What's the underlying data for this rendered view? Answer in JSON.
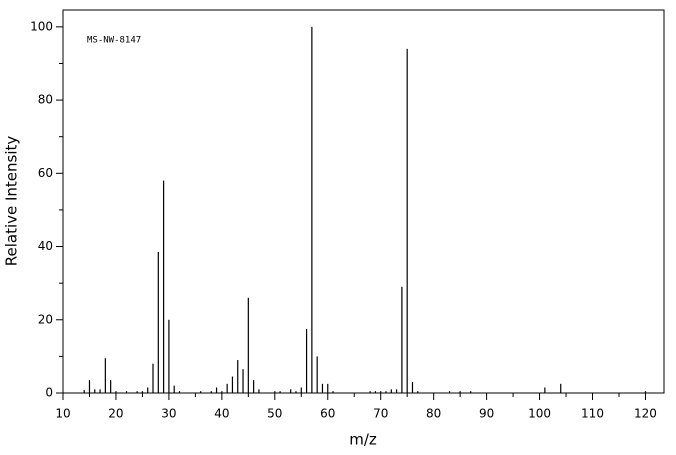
{
  "chart_data": {
    "type": "bar",
    "annotation": "MS-NW-8147",
    "x_label": "m/z",
    "y_label": "Relative Intensity",
    "x": [
      14,
      15,
      16,
      17,
      18,
      19,
      20,
      22,
      24,
      25,
      26,
      27,
      28,
      29,
      30,
      31,
      32,
      36,
      38,
      39,
      40,
      41,
      42,
      43,
      44,
      45,
      46,
      47,
      50,
      51,
      53,
      54,
      55,
      56,
      57,
      58,
      59,
      60,
      61,
      68,
      69,
      70,
      71,
      72,
      73,
      74,
      75,
      76,
      77,
      83,
      85,
      87,
      101,
      104,
      120
    ],
    "values": [
      0.8,
      3.5,
      1,
      1,
      9.5,
      3.5,
      0.5,
      0.5,
      0.5,
      0.5,
      1.5,
      8,
      38.5,
      58,
      20,
      2,
      0.5,
      0.5,
      0.5,
      1.5,
      0.5,
      2.5,
      4.5,
      9,
      6.5,
      26,
      3.5,
      1,
      0.5,
      0.5,
      1,
      0.5,
      1.5,
      17.5,
      100,
      10,
      2.5,
      2.5,
      0.5,
      0.5,
      0.5,
      0.5,
      0.5,
      1,
      1,
      29,
      94,
      3,
      0.5,
      0.5,
      0.5,
      0.5,
      1.5,
      2.5,
      0.5
    ],
    "color": "#000000",
    "xlim": [
      10,
      123.5
    ],
    "ylim": [
      0,
      104.6
    ],
    "xticks": [
      10,
      20,
      30,
      40,
      50,
      60,
      70,
      80,
      90,
      100,
      110,
      120
    ],
    "xminorticks": [
      15,
      25,
      35,
      45,
      55,
      65,
      75,
      85,
      95,
      105,
      115
    ],
    "yticks": [
      0,
      20,
      40,
      60,
      80,
      100
    ],
    "yminorticks": [
      10,
      30,
      50,
      70,
      90
    ]
  }
}
